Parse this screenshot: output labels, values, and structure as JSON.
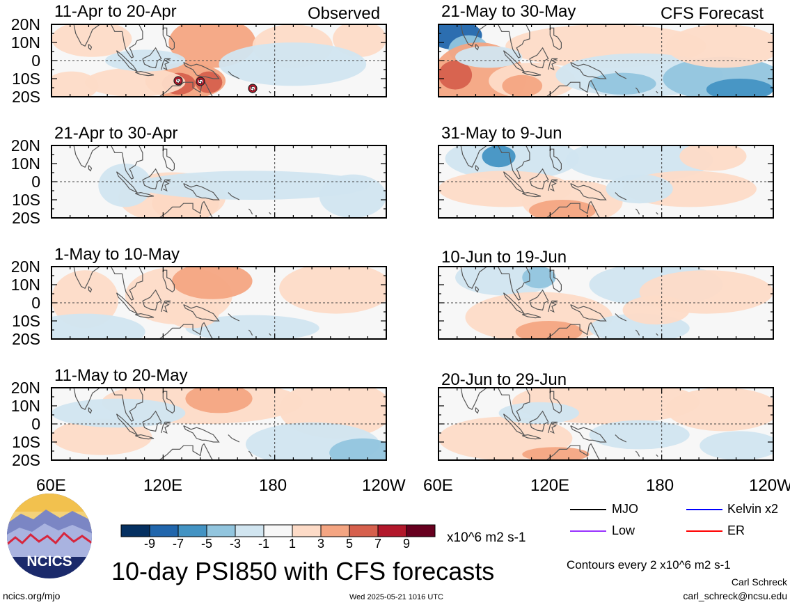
{
  "title": "10-day PSI850 with CFS forecasts",
  "units": "x10^6 m2 s-1",
  "contour_note": "Contours every 2 x10^6 m2 s-1",
  "author": "Carl Schreck",
  "email": "carl_schreck@ncsu.edu",
  "url": "ncics.org/mjo",
  "timestamp": "Wed 2025-05-21 1016 UTC",
  "logo_text": "NCICS",
  "column_labels": [
    "Observed",
    "CFS Forecast"
  ],
  "lat_labels": [
    "20N",
    "10N",
    "0",
    "10S",
    "20S"
  ],
  "lon_labels": [
    "60E",
    "120E",
    "180",
    "120W"
  ],
  "panels": [
    {
      "title": "11-Apr to 20-Apr",
      "column": "Observed"
    },
    {
      "title": "21-Apr to 30-Apr",
      "column": "Observed"
    },
    {
      "title": "1-May to 10-May",
      "column": "Observed"
    },
    {
      "title": "11-May to 20-May",
      "column": "Observed"
    },
    {
      "title": "21-May to 30-May",
      "column": "CFS Forecast"
    },
    {
      "title": "31-May to 9-Jun",
      "column": "CFS Forecast"
    },
    {
      "title": "10-Jun to 19-Jun",
      "column": "CFS Forecast"
    },
    {
      "title": "20-Jun to 29-Jun",
      "column": "CFS Forecast"
    }
  ],
  "storm_markers": [
    "5",
    "5",
    "5"
  ],
  "colorbar": {
    "labels": [
      "-9",
      "-7",
      "-5",
      "-3",
      "-1",
      "1",
      "3",
      "5",
      "7",
      "9"
    ],
    "colors": [
      "#053061",
      "#2166ac",
      "#4393c3",
      "#92c5de",
      "#d1e5f0",
      "#f7f7f7",
      "#fddbc7",
      "#f4a582",
      "#d6604d",
      "#b2182b",
      "#67001f"
    ]
  },
  "legend": [
    {
      "label": "MJO",
      "color": "#000000"
    },
    {
      "label": "Kelvin x2",
      "color": "#0000ff"
    },
    {
      "label": "Low",
      "color": "#9933ff"
    },
    {
      "label": "ER",
      "color": "#ff0000"
    }
  ]
}
